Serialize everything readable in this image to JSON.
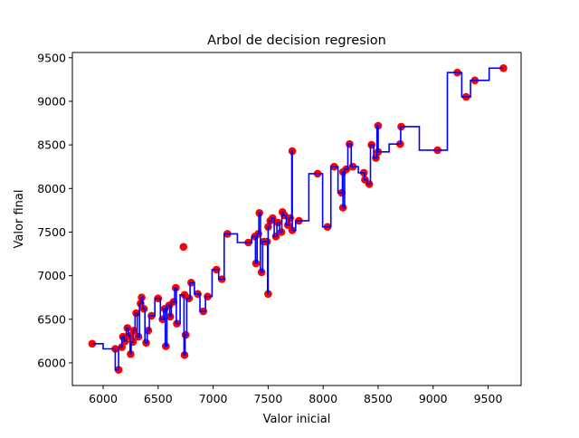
{
  "chart_data": {
    "type": "scatter",
    "title": "Arbol de decision regresion",
    "xlabel": "Valor inicial",
    "ylabel": "Valor final",
    "xlim": [
      5720,
      9800
    ],
    "ylim": [
      5740,
      9560
    ],
    "xticks": [
      6000,
      6500,
      7000,
      7500,
      8000,
      8500,
      9000,
      9500
    ],
    "yticks": [
      6000,
      6500,
      7000,
      7500,
      8000,
      8500,
      9000,
      9500
    ],
    "grid": false,
    "colors": {
      "points": "#ff0000",
      "line": "#0000ff",
      "axes": "#000000",
      "background": "#ffffff"
    },
    "series": [
      {
        "kind": "points",
        "points": [
          [
            5900,
            6220
          ],
          [
            6110,
            6160
          ],
          [
            6140,
            5920
          ],
          [
            6170,
            6180
          ],
          [
            6180,
            6300
          ],
          [
            6200,
            6250
          ],
          [
            6220,
            6400
          ],
          [
            6240,
            6310
          ],
          [
            6250,
            6100
          ],
          [
            6270,
            6240
          ],
          [
            6280,
            6370
          ],
          [
            6300,
            6570
          ],
          [
            6320,
            6300
          ],
          [
            6340,
            6680
          ],
          [
            6350,
            6750
          ],
          [
            6370,
            6620
          ],
          [
            6390,
            6230
          ],
          [
            6410,
            6370
          ],
          [
            6440,
            6540
          ],
          [
            6500,
            6740
          ],
          [
            6540,
            6500
          ],
          [
            6560,
            6620
          ],
          [
            6570,
            6190
          ],
          [
            6600,
            6660
          ],
          [
            6610,
            6530
          ],
          [
            6640,
            6700
          ],
          [
            6660,
            6860
          ],
          [
            6670,
            6450
          ],
          [
            6730,
            7330
          ],
          [
            6740,
            6780
          ],
          [
            6740,
            6090
          ],
          [
            6750,
            6320
          ],
          [
            6780,
            6740
          ],
          [
            6800,
            6920
          ],
          [
            6860,
            6790
          ],
          [
            6910,
            6590
          ],
          [
            6950,
            6760
          ],
          [
            7030,
            7070
          ],
          [
            7080,
            6960
          ],
          [
            7130,
            7480
          ],
          [
            7320,
            7380
          ],
          [
            7380,
            7450
          ],
          [
            7390,
            7140
          ],
          [
            7410,
            7480
          ],
          [
            7420,
            7720
          ],
          [
            7440,
            7040
          ],
          [
            7460,
            7390
          ],
          [
            7490,
            7390
          ],
          [
            7500,
            6790
          ],
          [
            7500,
            7560
          ],
          [
            7520,
            7630
          ],
          [
            7540,
            7660
          ],
          [
            7570,
            7450
          ],
          [
            7590,
            7610
          ],
          [
            7620,
            7500
          ],
          [
            7630,
            7730
          ],
          [
            7650,
            7690
          ],
          [
            7680,
            7580
          ],
          [
            7700,
            7660
          ],
          [
            7720,
            8430
          ],
          [
            7720,
            7520
          ],
          [
            7780,
            7630
          ],
          [
            7950,
            8170
          ],
          [
            8040,
            7560
          ],
          [
            8100,
            8250
          ],
          [
            8170,
            7950
          ],
          [
            8180,
            8190
          ],
          [
            8180,
            7780
          ],
          [
            8210,
            8220
          ],
          [
            8240,
            8510
          ],
          [
            8270,
            8250
          ],
          [
            8370,
            8180
          ],
          [
            8380,
            8100
          ],
          [
            8420,
            8050
          ],
          [
            8440,
            8500
          ],
          [
            8480,
            8350
          ],
          [
            8500,
            8720
          ],
          [
            8500,
            8420
          ],
          [
            8700,
            8510
          ],
          [
            8710,
            8710
          ],
          [
            9040,
            8440
          ],
          [
            9220,
            9330
          ],
          [
            9300,
            9050
          ],
          [
            9380,
            9240
          ],
          [
            9640,
            9380
          ]
        ]
      },
      {
        "kind": "step",
        "points": [
          [
            5900,
            6220
          ],
          [
            6000,
            6220
          ],
          [
            6000,
            6160
          ],
          [
            6110,
            6160
          ],
          [
            6110,
            5920
          ],
          [
            6140,
            5920
          ],
          [
            6140,
            6180
          ],
          [
            6170,
            6180
          ],
          [
            6170,
            6300
          ],
          [
            6190,
            6300
          ],
          [
            6190,
            6250
          ],
          [
            6210,
            6250
          ],
          [
            6210,
            6400
          ],
          [
            6230,
            6400
          ],
          [
            6230,
            6310
          ],
          [
            6245,
            6310
          ],
          [
            6245,
            6100
          ],
          [
            6255,
            6100
          ],
          [
            6255,
            6240
          ],
          [
            6275,
            6240
          ],
          [
            6275,
            6370
          ],
          [
            6290,
            6370
          ],
          [
            6290,
            6570
          ],
          [
            6310,
            6570
          ],
          [
            6310,
            6300
          ],
          [
            6330,
            6300
          ],
          [
            6330,
            6680
          ],
          [
            6345,
            6680
          ],
          [
            6345,
            6750
          ],
          [
            6360,
            6750
          ],
          [
            6360,
            6620
          ],
          [
            6380,
            6620
          ],
          [
            6380,
            6230
          ],
          [
            6400,
            6230
          ],
          [
            6400,
            6370
          ],
          [
            6420,
            6370
          ],
          [
            6420,
            6540
          ],
          [
            6470,
            6540
          ],
          [
            6470,
            6740
          ],
          [
            6520,
            6740
          ],
          [
            6520,
            6500
          ],
          [
            6550,
            6500
          ],
          [
            6550,
            6620
          ],
          [
            6565,
            6620
          ],
          [
            6565,
            6190
          ],
          [
            6580,
            6190
          ],
          [
            6580,
            6660
          ],
          [
            6605,
            6660
          ],
          [
            6605,
            6530
          ],
          [
            6620,
            6530
          ],
          [
            6620,
            6700
          ],
          [
            6650,
            6700
          ],
          [
            6650,
            6860
          ],
          [
            6665,
            6860
          ],
          [
            6665,
            6450
          ],
          [
            6700,
            6450
          ],
          [
            6700,
            6780
          ],
          [
            6735,
            6780
          ],
          [
            6735,
            6090
          ],
          [
            6745,
            6090
          ],
          [
            6745,
            6320
          ],
          [
            6760,
            6320
          ],
          [
            6760,
            6740
          ],
          [
            6790,
            6740
          ],
          [
            6790,
            6920
          ],
          [
            6830,
            6920
          ],
          [
            6830,
            6790
          ],
          [
            6880,
            6790
          ],
          [
            6880,
            6590
          ],
          [
            6930,
            6590
          ],
          [
            6930,
            6760
          ],
          [
            6990,
            6760
          ],
          [
            6990,
            7070
          ],
          [
            7050,
            7070
          ],
          [
            7050,
            6960
          ],
          [
            7100,
            6960
          ],
          [
            7100,
            7480
          ],
          [
            7220,
            7480
          ],
          [
            7220,
            7380
          ],
          [
            7350,
            7380
          ],
          [
            7350,
            7450
          ],
          [
            7385,
            7450
          ],
          [
            7385,
            7140
          ],
          [
            7400,
            7140
          ],
          [
            7400,
            7480
          ],
          [
            7415,
            7480
          ],
          [
            7415,
            7720
          ],
          [
            7430,
            7720
          ],
          [
            7430,
            7040
          ],
          [
            7450,
            7040
          ],
          [
            7450,
            7390
          ],
          [
            7495,
            7390
          ],
          [
            7495,
            6790
          ],
          [
            7500,
            6790
          ],
          [
            7500,
            7560
          ],
          [
            7510,
            7560
          ],
          [
            7510,
            7630
          ],
          [
            7530,
            7630
          ],
          [
            7530,
            7660
          ],
          [
            7555,
            7660
          ],
          [
            7555,
            7450
          ],
          [
            7580,
            7450
          ],
          [
            7580,
            7610
          ],
          [
            7605,
            7610
          ],
          [
            7605,
            7500
          ],
          [
            7625,
            7500
          ],
          [
            7625,
            7730
          ],
          [
            7640,
            7730
          ],
          [
            7640,
            7690
          ],
          [
            7665,
            7690
          ],
          [
            7665,
            7580
          ],
          [
            7690,
            7580
          ],
          [
            7690,
            7660
          ],
          [
            7715,
            7660
          ],
          [
            7715,
            8430
          ],
          [
            7720,
            8430
          ],
          [
            7720,
            7520
          ],
          [
            7750,
            7520
          ],
          [
            7750,
            7630
          ],
          [
            7870,
            7630
          ],
          [
            7870,
            8170
          ],
          [
            7995,
            8170
          ],
          [
            7995,
            7560
          ],
          [
            8070,
            7560
          ],
          [
            8070,
            8250
          ],
          [
            8135,
            8250
          ],
          [
            8135,
            7950
          ],
          [
            8175,
            7950
          ],
          [
            8175,
            8190
          ],
          [
            8180,
            8190
          ],
          [
            8180,
            7780
          ],
          [
            8195,
            7780
          ],
          [
            8195,
            8220
          ],
          [
            8225,
            8220
          ],
          [
            8225,
            8510
          ],
          [
            8255,
            8510
          ],
          [
            8255,
            8250
          ],
          [
            8320,
            8250
          ],
          [
            8320,
            8180
          ],
          [
            8375,
            8180
          ],
          [
            8375,
            8100
          ],
          [
            8400,
            8100
          ],
          [
            8400,
            8050
          ],
          [
            8430,
            8050
          ],
          [
            8430,
            8500
          ],
          [
            8460,
            8500
          ],
          [
            8460,
            8350
          ],
          [
            8490,
            8350
          ],
          [
            8490,
            8720
          ],
          [
            8500,
            8720
          ],
          [
            8500,
            8420
          ],
          [
            8600,
            8420
          ],
          [
            8600,
            8510
          ],
          [
            8705,
            8510
          ],
          [
            8705,
            8710
          ],
          [
            8875,
            8710
          ],
          [
            8875,
            8440
          ],
          [
            9130,
            8440
          ],
          [
            9130,
            9330
          ],
          [
            9260,
            9330
          ],
          [
            9260,
            9050
          ],
          [
            9340,
            9050
          ],
          [
            9340,
            9240
          ],
          [
            9510,
            9240
          ],
          [
            9510,
            9380
          ],
          [
            9640,
            9380
          ]
        ]
      }
    ]
  }
}
